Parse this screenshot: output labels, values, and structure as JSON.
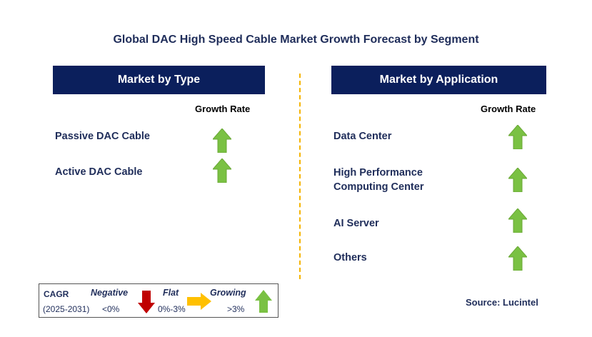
{
  "title": "Global DAC High Speed Cable Market Growth Forecast by Segment",
  "left_panel": {
    "header": "Market by Type",
    "growth_rate_label": "Growth Rate",
    "items": [
      {
        "label": "Passive DAC Cable",
        "trend": "growing"
      },
      {
        "label": "Active DAC Cable",
        "trend": "growing"
      }
    ]
  },
  "right_panel": {
    "header": "Market by Application",
    "growth_rate_label": "Growth Rate",
    "items": [
      {
        "label_line1": "Data Center",
        "label_line2": "",
        "trend": "growing"
      },
      {
        "label_line1": "High Performance",
        "label_line2": "Computing Center",
        "trend": "growing"
      },
      {
        "label_line1": "AI Server",
        "label_line2": "",
        "trend": "growing"
      },
      {
        "label_line1": "Others",
        "label_line2": "",
        "trend": "growing"
      }
    ]
  },
  "legend": {
    "cagr_label": "CAGR",
    "period": "(2025-2031)",
    "negative": {
      "caption": "Negative",
      "range": "<0%",
      "color": "#c00000"
    },
    "flat": {
      "caption": "Flat",
      "range": "0%-3%",
      "color": "#ffc000"
    },
    "growing": {
      "caption": "Growing",
      "range": ">3%",
      "color": "#7ac143"
    }
  },
  "source": "Source: Lucintel",
  "colors": {
    "header_bg": "#0b1f5c",
    "text_dark": "#1f2d5a",
    "divider": "#f5b400",
    "arrow_green": "#7ac143"
  }
}
